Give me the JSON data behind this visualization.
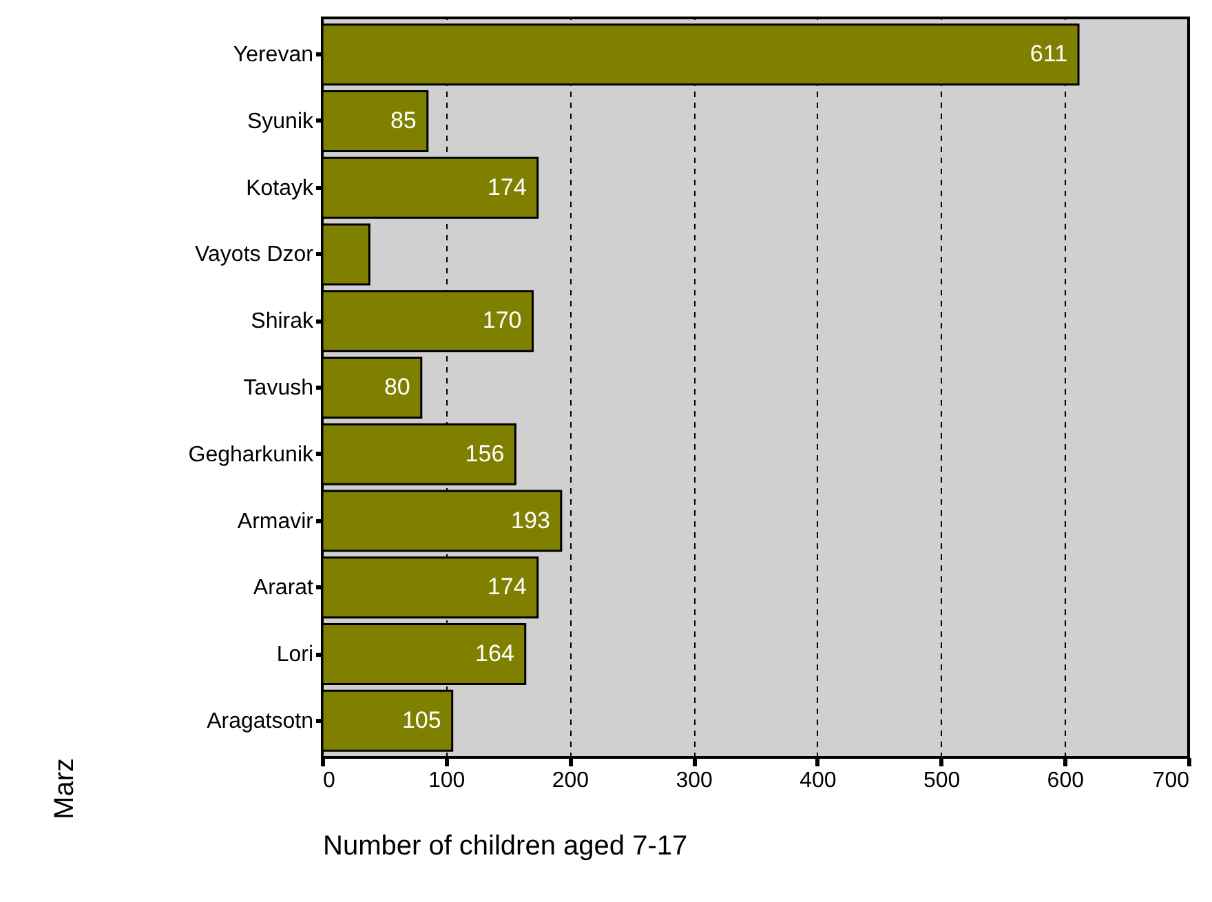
{
  "chart_data": {
    "type": "bar",
    "orientation": "horizontal",
    "xlabel": "Number of children aged 7-17",
    "ylabel": "Marz",
    "categories": [
      "Yerevan",
      "Syunik",
      "Kotayk",
      "Vayots Dzor",
      "Shirak",
      "Tavush",
      "Gegharkunik",
      "Armavir",
      "Ararat",
      "Lori",
      "Aragatsotn"
    ],
    "values": [
      611,
      85,
      174,
      38,
      170,
      80,
      156,
      193,
      174,
      164,
      105
    ],
    "value_labels": [
      "611",
      "85",
      "174",
      null,
      "170",
      "80",
      "156",
      "193",
      "174",
      "164",
      "105"
    ],
    "color": "#808000",
    "xlim": [
      0,
      700
    ],
    "xticks": [
      0,
      100,
      200,
      300,
      400,
      500,
      600,
      700
    ],
    "grid": "x"
  }
}
